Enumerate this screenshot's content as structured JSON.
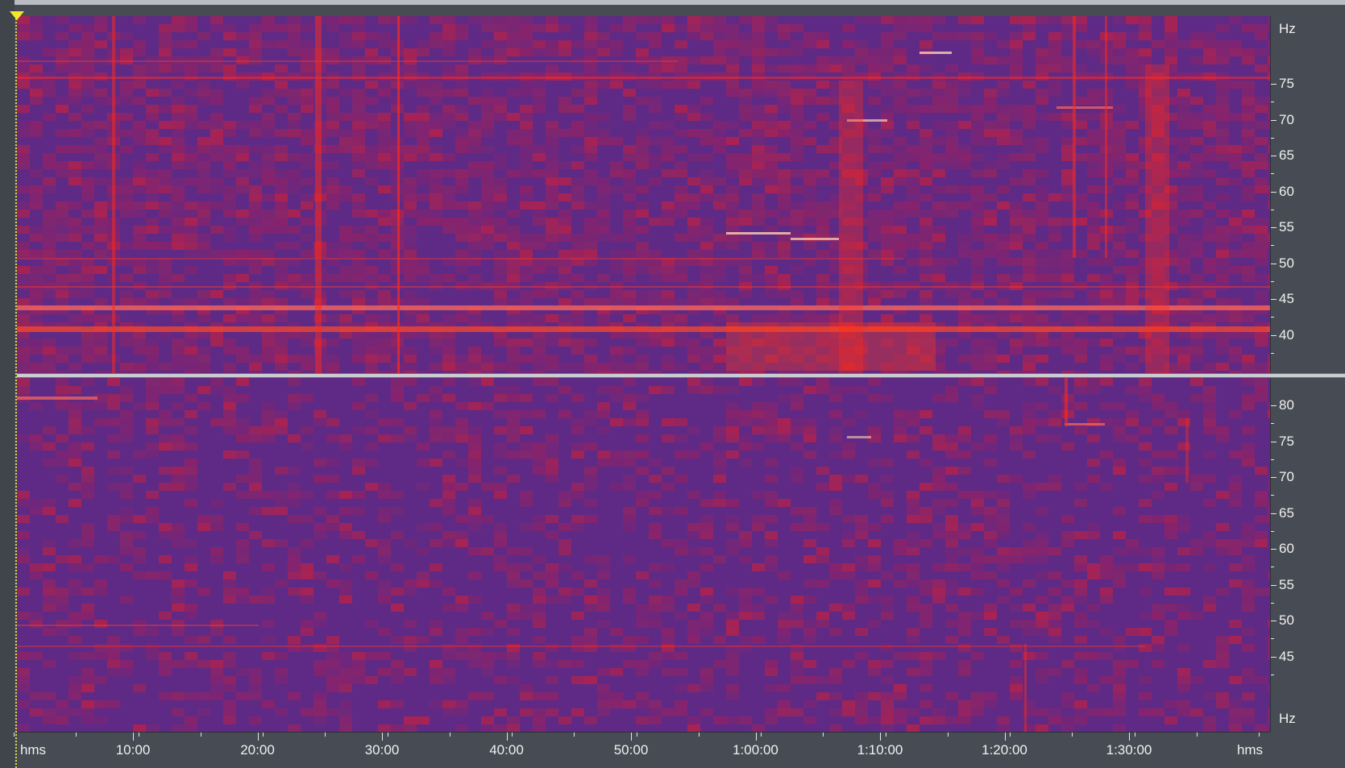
{
  "view": "spectral-frequency-display",
  "colors": {
    "background": "#474b53",
    "spectrogram_low": "#5f2a86",
    "spectrogram_mid": "#c41f3a",
    "spectrogram_high": "#ff3b1a",
    "playhead": "#f3e62a"
  },
  "channel_top": {
    "unit_label": "Hz",
    "ticks": [
      "75",
      "70",
      "65",
      "60",
      "55",
      "50",
      "45",
      "40"
    ]
  },
  "channel_bottom": {
    "unit_label": "Hz",
    "ticks": [
      "80",
      "75",
      "70",
      "65",
      "60",
      "55",
      "50",
      "45"
    ]
  },
  "time_axis": {
    "left_unit": "hms",
    "right_unit": "hms",
    "labels": [
      "10:00",
      "20:00",
      "30:00",
      "40:00",
      "50:00",
      "1:00:00",
      "1:10:00",
      "1:20:00",
      "1:30:00"
    ]
  },
  "icons": {
    "playhead_marker": "triangle-down-icon"
  }
}
